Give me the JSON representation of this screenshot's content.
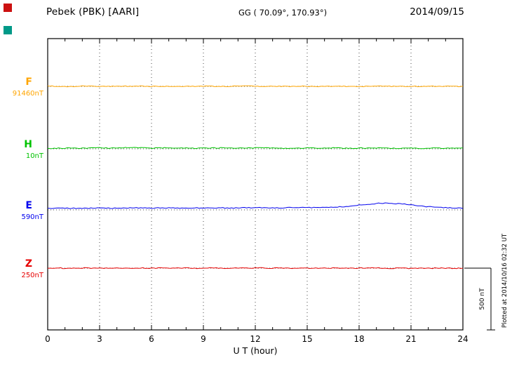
{
  "header": {
    "station": "Pebek (PBK)  [AARI]",
    "coords": "GG ( 70.09°, 170.93°)",
    "date": "2014/09/15"
  },
  "axis": {
    "x_label": "U T (hour)",
    "x_ticks": [
      "0",
      "3",
      "6",
      "9",
      "12",
      "15",
      "18",
      "21",
      "24"
    ],
    "x_range": [
      0,
      24
    ]
  },
  "scale_bar": {
    "label": "500 nT",
    "nT": 500
  },
  "footer_note": "Plotted at 2014/10/16 02:32 UT",
  "corner_markers": [
    {
      "name": "red-square",
      "color": "#cc1111"
    },
    {
      "name": "teal-square",
      "color": "#009988"
    }
  ],
  "chart_data": {
    "type": "line",
    "title": "Pebek (PBK) [AARI] magnetogram",
    "date": "2014/09/15",
    "xlabel": "U T (hour)",
    "x_range": [
      0,
      24
    ],
    "sample_interval_hours": 0.5,
    "grid": "dotted vertical every 3 hours, dotted horizontal baseline per trace",
    "scale_bar_nT": 500,
    "series": [
      {
        "name": "F",
        "base_label": "91460nT",
        "base_nT": 91460,
        "color": "#ffa500",
        "delta_nT": [
          0,
          1,
          -1,
          0,
          2,
          1,
          0,
          -1,
          1,
          0,
          1,
          2,
          0,
          -1,
          0,
          1,
          -1,
          0,
          1,
          0,
          -1,
          1,
          0,
          2,
          1,
          0,
          1,
          -1,
          0,
          1,
          0,
          -1,
          1,
          0,
          1,
          0,
          -1,
          0,
          1,
          -1,
          0,
          1,
          0,
          -1,
          0,
          1,
          0,
          -1,
          0
        ]
      },
      {
        "name": "H",
        "base_label": "10nT",
        "base_nT": 10,
        "color": "#00c300",
        "delta_nT": [
          3,
          4,
          6,
          5,
          4,
          7,
          8,
          6,
          5,
          9,
          10,
          8,
          6,
          7,
          9,
          8,
          6,
          5,
          7,
          6,
          8,
          7,
          5,
          6,
          8,
          7,
          6,
          5,
          4,
          6,
          7,
          5,
          6,
          7,
          5,
          4,
          6,
          5,
          7,
          6,
          4,
          5,
          6,
          4,
          5,
          6,
          5,
          4,
          5
        ]
      },
      {
        "name": "E",
        "base_label": "590nT",
        "base_nT": 590,
        "color": "#0000ee",
        "delta_nT": [
          12,
          13,
          14,
          13,
          12,
          14,
          15,
          14,
          13,
          15,
          16,
          15,
          14,
          15,
          16,
          15,
          14,
          15,
          16,
          17,
          16,
          15,
          16,
          17,
          18,
          17,
          16,
          17,
          18,
          17,
          18,
          19,
          20,
          22,
          25,
          30,
          38,
          45,
          52,
          55,
          52,
          48,
          40,
          32,
          26,
          20,
          18,
          15,
          14
        ]
      },
      {
        "name": "Z",
        "base_label": "250nT",
        "base_nT": 250,
        "color": "#e60000",
        "delta_nT": [
          0,
          1,
          -1,
          0,
          1,
          0,
          -1,
          1,
          2,
          1,
          0,
          1,
          -1,
          0,
          1,
          0,
          1,
          -1,
          0,
          1,
          0,
          -1,
          0,
          1,
          2,
          1,
          0,
          1,
          0,
          -1,
          0,
          1,
          0,
          1,
          -1,
          0,
          1,
          2,
          1,
          0,
          -2,
          1,
          -3,
          2,
          -2,
          1,
          0,
          -1,
          0
        ]
      }
    ]
  }
}
